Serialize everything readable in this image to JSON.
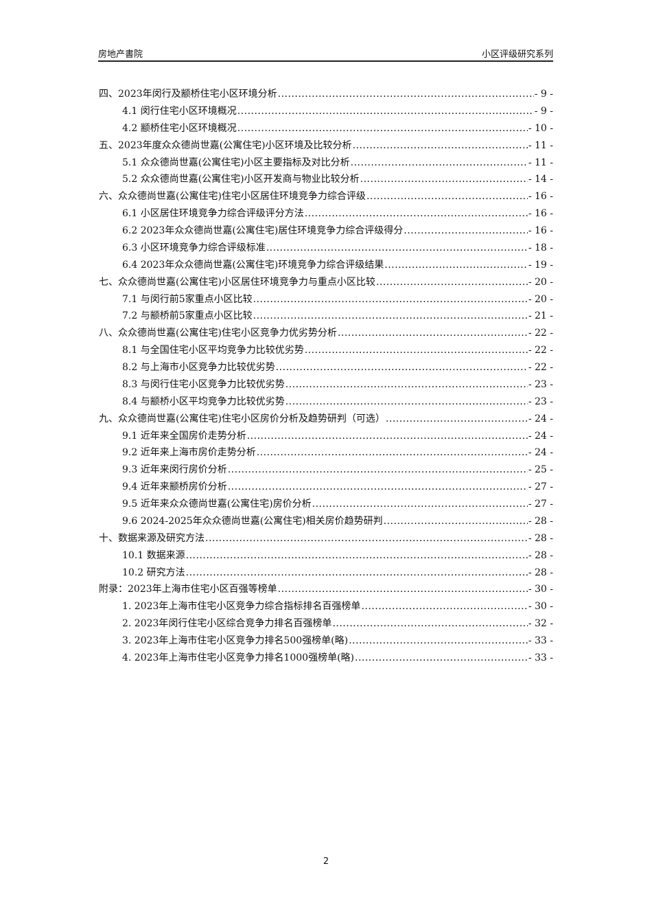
{
  "header": {
    "left": "房地产書院",
    "right": "小区评级研究系列"
  },
  "toc": [
    {
      "level": 1,
      "title": "四、2023年闵行及颛桥住宅小区环境分析",
      "page": "- 9 -"
    },
    {
      "level": 2,
      "title": "4.1 闵行住宅小区环境概况",
      "page": "- 9 -"
    },
    {
      "level": 2,
      "title": "4.2 颛桥住宅小区环境概况",
      "page": "- 10 -"
    },
    {
      "level": 1,
      "title": "五、2023年度众众德尚世嘉(公寓住宅)小区环境及比较分析",
      "page": "- 11 -"
    },
    {
      "level": 2,
      "title": "5.1 众众德尚世嘉(公寓住宅)小区主要指标及对比分析",
      "page": "- 11 -"
    },
    {
      "level": 2,
      "title": "5.2 众众德尚世嘉(公寓住宅)小区开发商与物业比较分析",
      "page": "- 14 -"
    },
    {
      "level": 1,
      "title": "六、众众德尚世嘉(公寓住宅)住宅小区居住环境竞争力综合评级",
      "page": "- 16 -"
    },
    {
      "level": 2,
      "title": "6.1 小区居住环境竞争力综合评级评分方法",
      "page": "- 16 -"
    },
    {
      "level": 2,
      "title": "6.2 2023年众众德尚世嘉(公寓住宅)居住环境竞争力综合评级得分",
      "page": "- 16 -"
    },
    {
      "level": 2,
      "title": "6.3 小区环境竞争力综合评级标准",
      "page": "- 18 -"
    },
    {
      "level": 2,
      "title": "6.4 2023年众众德尚世嘉(公寓住宅)环境竞争力综合评级结果",
      "page": "- 19 -"
    },
    {
      "level": 1,
      "title": "七、众众德尚世嘉(公寓住宅)小区居住环境竞争力与重点小区比较",
      "page": "- 20 -"
    },
    {
      "level": 2,
      "title": "7.1 与闵行前5家重点小区比较",
      "page": "- 20 -"
    },
    {
      "level": 2,
      "title": "7.2 与颛桥前5家重点小区比较",
      "page": "- 21 -"
    },
    {
      "level": 1,
      "title": "八、众众德尚世嘉(公寓住宅)住宅小区竞争力优劣势分析",
      "page": "- 22 -"
    },
    {
      "level": 2,
      "title": "8.1 与全国住宅小区平均竞争力比较优劣势",
      "page": "- 22 -"
    },
    {
      "level": 2,
      "title": "8.2 与上海市小区竞争力比较优劣势",
      "page": "- 22 -"
    },
    {
      "level": 2,
      "title": "8.3 与闵行住宅小区竞争力比较优劣势",
      "page": "- 23 -"
    },
    {
      "level": 2,
      "title": "8.4 与颛桥小区平均竞争力比较优劣势",
      "page": "- 23 -"
    },
    {
      "level": 1,
      "title": "九、众众德尚世嘉(公寓住宅)住宅小区房价分析及趋势研判（可选）",
      "page": "- 24 -"
    },
    {
      "level": 2,
      "title": "9.1 近年来全国房价走势分析",
      "page": "- 24 -"
    },
    {
      "level": 2,
      "title": "9.2 近年来上海市房价走势分析",
      "page": "- 24 -"
    },
    {
      "level": 2,
      "title": "9.3 近年来闵行房价分析",
      "page": "- 25 -"
    },
    {
      "level": 2,
      "title": "9.4 近年来颛桥房价分析",
      "page": "- 27 -"
    },
    {
      "level": 2,
      "title": "9.5 近年来众众德尚世嘉(公寓住宅)房价分析",
      "page": "- 27 -"
    },
    {
      "level": 2,
      "title": "9.6 2024-2025年众众德尚世嘉(公寓住宅)相关房价趋势研判",
      "page": "- 28 -"
    },
    {
      "level": 1,
      "title": "十、数据来源及研究方法",
      "page": "- 28 -"
    },
    {
      "level": 2,
      "title": "10.1 数据来源",
      "page": "- 28 -"
    },
    {
      "level": 2,
      "title": "10.2 研究方法",
      "page": "- 28 -"
    },
    {
      "level": 1,
      "title": "附录：2023年上海市住宅小区百强等榜单",
      "page": "- 30 -"
    },
    {
      "level": 2,
      "title": "1. 2023年上海市住宅小区竞争力综合指标排名百强榜单",
      "page": "- 30 -"
    },
    {
      "level": 2,
      "title": "2. 2023年闵行住宅小区综合竞争力排名百强榜单",
      "page": "- 32 -"
    },
    {
      "level": 2,
      "title": "3. 2023年上海市住宅小区竞争力排名500强榜单(略)",
      "page": "- 33 -"
    },
    {
      "level": 2,
      "title": "4. 2023年上海市住宅小区竞争力排名1000强榜单(略)",
      "page": "- 33 -"
    }
  ],
  "footer": {
    "page_number": "2"
  }
}
